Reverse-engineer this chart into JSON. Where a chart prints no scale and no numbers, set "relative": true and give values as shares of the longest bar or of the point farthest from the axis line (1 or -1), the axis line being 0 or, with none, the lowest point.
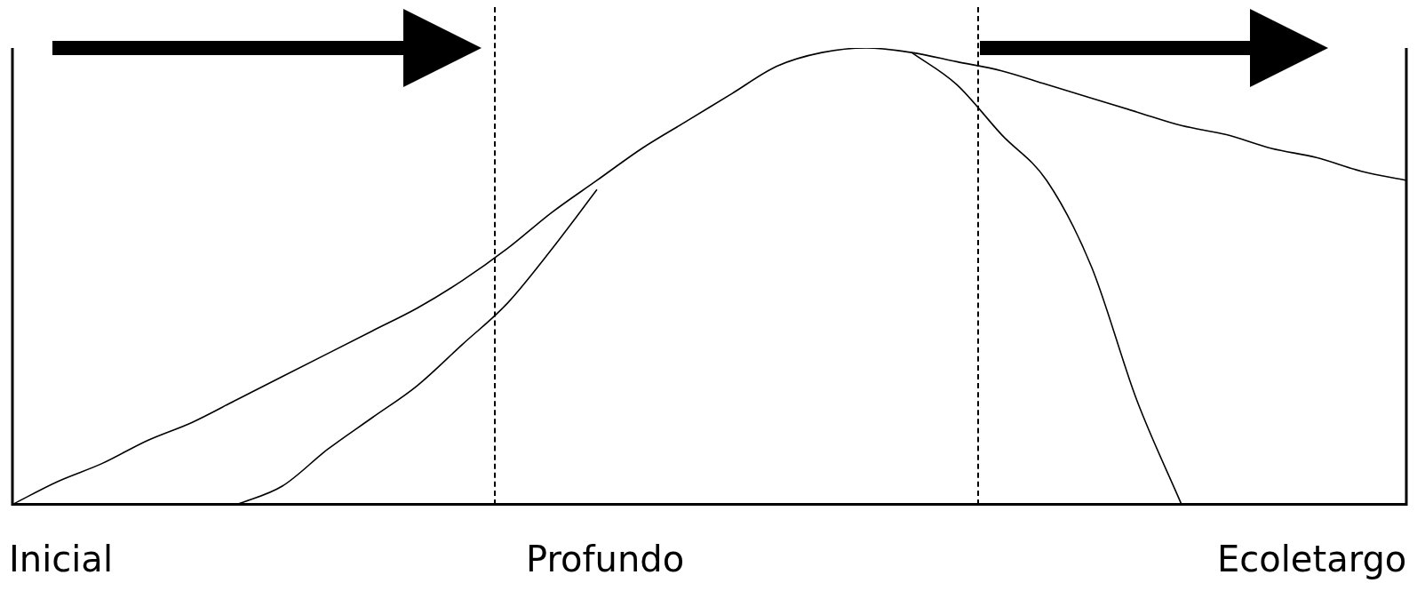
{
  "chart_data": {
    "type": "line",
    "relative": true,
    "marker": "none",
    "line_style": "solid",
    "grid": false,
    "legend": false,
    "categories": [
      null,
      null,
      null,
      null,
      null,
      null,
      null,
      null,
      null,
      null,
      null,
      null,
      null,
      null,
      null,
      null,
      null,
      null,
      null,
      null,
      null,
      null,
      null,
      null,
      null,
      null,
      null,
      null,
      null,
      null,
      null,
      null
    ],
    "series": [
      {
        "color": "#000000",
        "values": [
          0,
          0.05,
          0.09,
          0.14,
          0.18,
          0.23,
          0.28,
          0.33,
          0.38,
          0.43,
          0.49,
          0.56,
          0.64,
          0.71,
          0.78,
          0.84,
          0.9,
          0.96,
          0.99,
          1,
          0.99,
          0.97,
          0.95,
          0.92,
          0.89,
          0.86,
          0.83,
          0.81,
          0.78,
          0.76,
          0.73,
          0.71
        ]
      },
      {
        "color": "#000000",
        "values": [
          null,
          null,
          null,
          null,
          null,
          0,
          0.04,
          0.12,
          0.19,
          0.26,
          0.35,
          0.44,
          0.56,
          0.69,
          null,
          null,
          null,
          null,
          null,
          null,
          null,
          null,
          null,
          null,
          null,
          null,
          null,
          null,
          null,
          null,
          null,
          null
        ]
      },
      {
        "color": "#000000",
        "values": [
          null,
          null,
          null,
          null,
          null,
          null,
          null,
          null,
          null,
          null,
          null,
          null,
          null,
          null,
          null,
          null,
          null,
          null,
          null,
          null,
          0.99,
          0.92,
          0.81,
          0.71,
          0.52,
          0.23,
          0,
          null,
          null,
          null,
          null,
          null
        ]
      }
    ],
    "annotations": [
      "Inicial",
      "Profundo",
      "Ecoletargo"
    ]
  }
}
